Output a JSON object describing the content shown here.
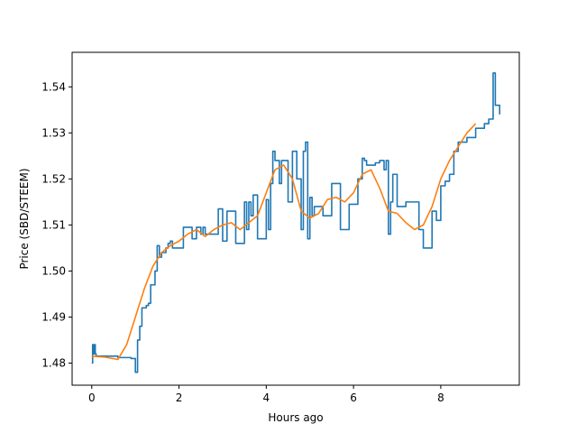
{
  "chart_data": {
    "type": "line",
    "title": "",
    "xlabel": "Hours ago",
    "ylabel": "Price (SBD/STEEM)",
    "xlim": [
      -0.45,
      9.8
    ],
    "ylim": [
      1.4752,
      1.5475
    ],
    "x_ticks": [
      0,
      2,
      4,
      6,
      8
    ],
    "x_tick_labels": [
      "0",
      "2",
      "4",
      "6",
      "8"
    ],
    "y_ticks": [
      1.48,
      1.49,
      1.5,
      1.51,
      1.52,
      1.53,
      1.54
    ],
    "y_tick_labels": [
      "1.48",
      "1.49",
      "1.50",
      "1.51",
      "1.52",
      "1.53",
      "1.54"
    ],
    "grid": false,
    "series": [
      {
        "color": "#1f77b4",
        "step": true,
        "x": [
          0,
          0.02,
          0.04,
          0.06,
          0.08,
          0.1,
          0.2,
          0.4,
          0.6,
          0.8,
          0.9,
          1.0,
          1.05,
          1.1,
          1.15,
          1.2,
          1.25,
          1.3,
          1.35,
          1.4,
          1.45,
          1.5,
          1.55,
          1.6,
          1.7,
          1.75,
          1.8,
          1.85,
          1.9,
          2.0,
          2.1,
          2.3,
          2.4,
          2.5,
          2.55,
          2.6,
          2.8,
          2.9,
          3.0,
          3.1,
          3.3,
          3.5,
          3.55,
          3.6,
          3.65,
          3.7,
          3.8,
          4.0,
          4.05,
          4.1,
          4.15,
          4.2,
          4.3,
          4.35,
          4.5,
          4.6,
          4.7,
          4.8,
          4.85,
          4.9,
          4.95,
          5.0,
          5.05,
          5.1,
          5.3,
          5.5,
          5.6,
          5.7,
          5.9,
          6.1,
          6.2,
          6.25,
          6.3,
          6.5,
          6.6,
          6.7,
          6.75,
          6.8,
          6.85,
          6.9,
          7.0,
          7.2,
          7.4,
          7.5,
          7.6,
          7.7,
          7.8,
          7.9,
          8.0,
          8.1,
          8.2,
          8.3,
          8.4,
          8.5,
          8.6,
          8.8,
          9.0,
          9.1,
          9.2,
          9.25,
          9.3,
          9.35
        ],
        "y": [
          1.48,
          1.484,
          1.482,
          1.484,
          1.482,
          1.4815,
          1.4815,
          1.4815,
          1.4812,
          1.4812,
          1.481,
          1.478,
          1.485,
          1.488,
          1.492,
          1.492,
          1.4925,
          1.493,
          1.497,
          1.497,
          1.5,
          1.5055,
          1.503,
          1.504,
          1.505,
          1.506,
          1.5065,
          1.505,
          1.505,
          1.505,
          1.5095,
          1.507,
          1.5095,
          1.508,
          1.5095,
          1.508,
          1.508,
          1.5135,
          1.5065,
          1.513,
          1.506,
          1.515,
          1.509,
          1.515,
          1.512,
          1.5165,
          1.507,
          1.5155,
          1.509,
          1.519,
          1.526,
          1.524,
          1.519,
          1.524,
          1.515,
          1.526,
          1.52,
          1.509,
          1.526,
          1.528,
          1.507,
          1.516,
          1.512,
          1.514,
          1.512,
          1.519,
          1.519,
          1.509,
          1.5145,
          1.52,
          1.5245,
          1.524,
          1.523,
          1.5235,
          1.524,
          1.522,
          1.524,
          1.508,
          1.515,
          1.521,
          1.514,
          1.515,
          1.515,
          1.509,
          1.505,
          1.505,
          1.513,
          1.511,
          1.5185,
          1.5195,
          1.521,
          1.526,
          1.528,
          1.528,
          1.529,
          1.531,
          1.532,
          1.533,
          1.543,
          1.536,
          1.536,
          1.534
        ]
      },
      {
        "color": "#ff7f0e",
        "step": false,
        "x": [
          0,
          0.3,
          0.6,
          0.8,
          1.0,
          1.2,
          1.4,
          1.6,
          1.8,
          2.0,
          2.2,
          2.4,
          2.6,
          2.8,
          3.0,
          3.2,
          3.4,
          3.6,
          3.8,
          4.0,
          4.2,
          4.4,
          4.6,
          4.8,
          5.0,
          5.2,
          5.4,
          5.6,
          5.8,
          6.0,
          6.2,
          6.4,
          6.6,
          6.8,
          7.0,
          7.2,
          7.4,
          7.6,
          7.8,
          8.0,
          8.2,
          8.4,
          8.6,
          8.8
        ],
        "y": [
          1.4815,
          1.4813,
          1.4808,
          1.484,
          1.49,
          1.496,
          1.501,
          1.504,
          1.5055,
          1.5065,
          1.508,
          1.509,
          1.5075,
          1.509,
          1.51,
          1.5105,
          1.509,
          1.5105,
          1.512,
          1.517,
          1.522,
          1.523,
          1.52,
          1.513,
          1.5115,
          1.5125,
          1.5155,
          1.516,
          1.515,
          1.517,
          1.521,
          1.522,
          1.518,
          1.513,
          1.5125,
          1.5105,
          1.509,
          1.51,
          1.514,
          1.52,
          1.524,
          1.527,
          1.53,
          1.532
        ]
      }
    ]
  }
}
